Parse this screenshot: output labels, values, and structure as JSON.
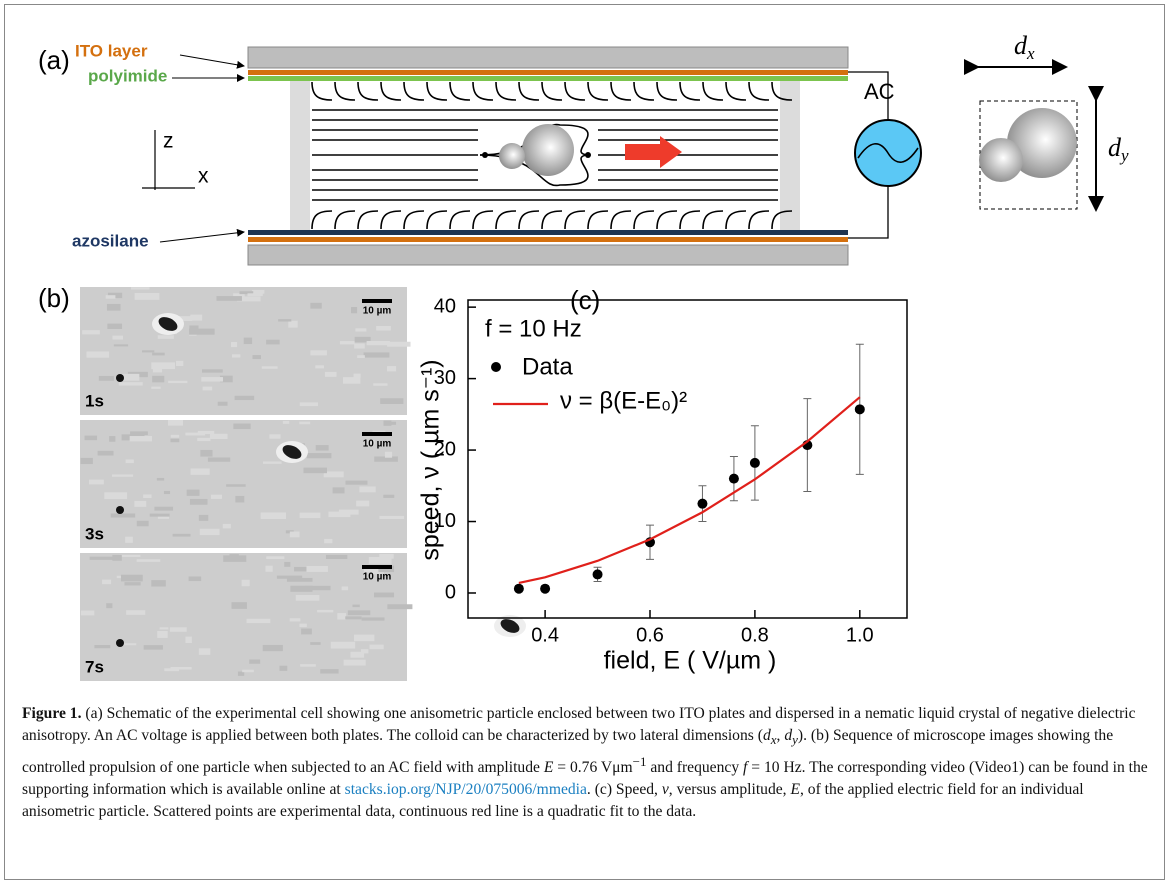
{
  "panel_a": {
    "label": "(a)",
    "ito_layer": "ITO layer",
    "polyimide": "polyimide",
    "azosilane": "azosilane",
    "axis_z": "z",
    "axis_x": "x",
    "ac": "AC",
    "dx": "d",
    "dx_sub": "x",
    "dy": "d",
    "dy_sub": "y"
  },
  "panel_b": {
    "label": "(b)",
    "frames": [
      {
        "time": "1s",
        "scale": "10 µm"
      },
      {
        "time": "3s",
        "scale": "10 µm"
      },
      {
        "time": "7s",
        "scale": "10 µm"
      }
    ]
  },
  "chart_data": {
    "type": "scatter",
    "panel_label": "(c)",
    "annotation": "f = 10 Hz",
    "x_label": "field, E ( V/µm )",
    "y_label": "speed, ν ( µm s⁻¹)",
    "xlim": [
      0.253,
      1.09
    ],
    "ylim": [
      -3.5,
      41
    ],
    "xticks": [
      0.4,
      0.6,
      0.8,
      {
        "value": 1,
        "label": "1.0"
      }
    ],
    "yticks": [
      0,
      10,
      20,
      30,
      40
    ],
    "series": [
      {
        "name": "Data",
        "color": "#000000",
        "x": [
          0.35,
          0.4,
          0.5,
          0.6,
          0.7,
          0.76,
          0.8,
          0.9,
          1.0
        ],
        "values": [
          0.6,
          0.6,
          2.6,
          7.1,
          12.5,
          16,
          18.2,
          20.7,
          25.7
        ],
        "errors": [
          0.3,
          0.3,
          1,
          2.4,
          2.5,
          3.1,
          5.2,
          6.5,
          9.1
        ]
      },
      {
        "name": "ν = β(E-E₀)²",
        "color": "#e0201b",
        "x": [
          0.35,
          0.4,
          0.5,
          0.6,
          0.7,
          0.8,
          0.9,
          1.0
        ],
        "values": [
          1.4,
          2.2,
          4.5,
          7.5,
          11.3,
          15.9,
          21.2,
          27.4
        ]
      }
    ]
  },
  "caption": {
    "segments": [
      "Figure 1.",
      " (a) Schematic of the experimental cell showing one anisometric particle enclosed between two ITO plates and dispersed in a nematic liquid crystal of negative dielectric anisotropy. An AC voltage is applied between both plates. The colloid can be characterized by two lateral dimensions (",
      "d",
      "x",
      ", ",
      "d",
      "y",
      "). (b) Sequence of microscope images showing the controlled propulsion of one particle when subjected to an AC field with amplitude ",
      "E",
      " = 0.76 Vμm",
      "−1",
      " and frequency ",
      "f",
      " = 10  Hz. The corresponding video (Video1) can be found in the supporting information which is available online at ",
      "stacks.iop.org/NJP/20/075006/mmedia",
      ". (c) Speed, ",
      "v",
      ", versus amplitude, ",
      "E",
      ", of the applied electric field for an individual anisometric particle. Scattered points are experimental data, continuous red line is a quadratic fit to the data."
    ]
  }
}
